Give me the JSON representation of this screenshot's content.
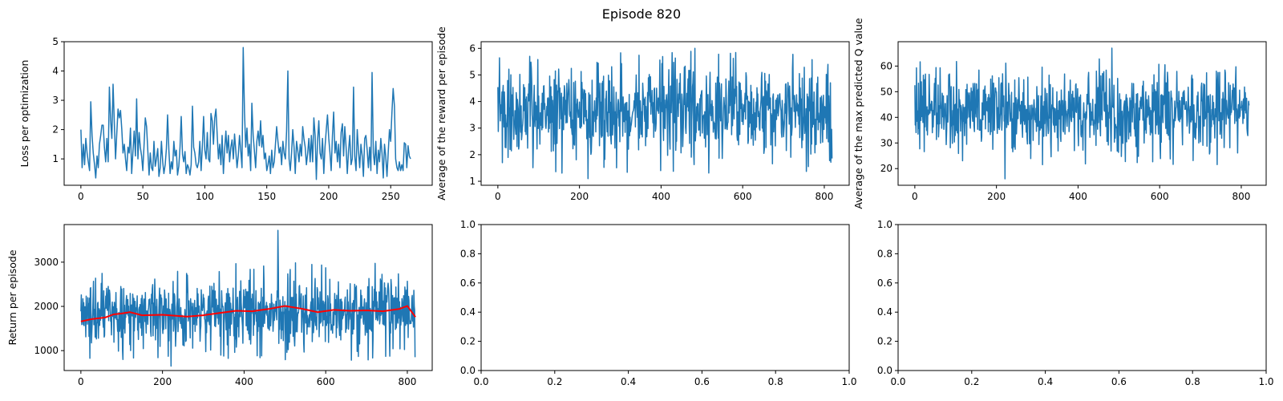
{
  "figure": {
    "title": "Episode 820"
  },
  "colors": {
    "series": "#1f77b4",
    "moving_average": "#ff0000",
    "axes": "#000000"
  },
  "chart_data": [
    {
      "type": "line",
      "ylabel": "Loss per optimization",
      "xlim": [
        -13.5,
        283.5
      ],
      "ylim": [
        0.1,
        5.0
      ],
      "xticks": [
        0,
        50,
        100,
        150,
        200,
        250
      ],
      "yticks": [
        1,
        2,
        3,
        4,
        5
      ],
      "series": [
        {
          "x_start": 0,
          "values": [
            2.0,
            0.7,
            1.5,
            0.8,
            1.7,
            1.2,
            0.9,
            0.6,
            2.95,
            1.8,
            1.2,
            0.8,
            0.35,
            1.1,
            0.7,
            1.5,
            1.8,
            2.15,
            2.15,
            1.4,
            0.9,
            1.7,
            0.9,
            3.45,
            2.3,
            1.7,
            3.55,
            2.2,
            1.0,
            1.9,
            2.7,
            2.4,
            2.65,
            2.0,
            1.2,
            1.5,
            1.0,
            0.6,
            1.4,
            1.2,
            2.05,
            0.5,
            1.25,
            1.95,
            1.1,
            3.05,
            1.0,
            1.9,
            1.4,
            1.1,
            0.6,
            1.5,
            2.4,
            2.1,
            1.3,
            0.45,
            1.2,
            0.7,
            0.6,
            1.6,
            0.75,
            1.0,
            1.35,
            0.4,
            0.7,
            1.6,
            0.9,
            0.5,
            0.8,
            1.35,
            2.5,
            1.3,
            0.5,
            0.9,
            0.65,
            1.6,
            1.1,
            1.3,
            0.45,
            0.75,
            1.4,
            2.45,
            1.15,
            0.9,
            1.25,
            0.5,
            0.8,
            0.7,
            0.45,
            0.8,
            2.8,
            1.4,
            1.2,
            0.8,
            0.7,
            0.9,
            1.6,
            0.6,
            1.4,
            2.45,
            1.3,
            1.0,
            1.9,
            1.0,
            0.9,
            2.55,
            2.3,
            1.5,
            2.4,
            2.7,
            1.8,
            1.0,
            1.5,
            0.8,
            1.8,
            0.5,
            1.3,
            1.95,
            1.2,
            1.8,
            0.9,
            1.4,
            1.65,
            1.0,
            1.85,
            1.3,
            0.7,
            1.1,
            1.8,
            1.3,
            0.7,
            4.8,
            2.6,
            1.4,
            2.05,
            1.1,
            1.5,
            0.6,
            2.9,
            1.8,
            1.3,
            0.7,
            1.6,
            1.95,
            1.45,
            2.3,
            1.4,
            1.8,
            1.0,
            1.2,
            0.6,
            0.8,
            1.1,
            0.5,
            1.3,
            0.7,
            0.9,
            1.5,
            2.1,
            1.6,
            1.2,
            1.4,
            0.8,
            1.6,
            1.2,
            1.0,
            1.95,
            4.0,
            1.0,
            0.6,
            1.2,
            2.0,
            1.4,
            0.5,
            1.6,
            1.3,
            0.9,
            1.5,
            1.1,
            2.1,
            1.7,
            1.4,
            0.8,
            1.2,
            1.7,
            0.9,
            1.8,
            0.9,
            2.4,
            1.8,
            0.3,
            1.6,
            2.3,
            1.2,
            1.0,
            1.7,
            0.5,
            1.4,
            2.0,
            2.5,
            1.7,
            1.2,
            0.6,
            1.8,
            2.6,
            1.2,
            1.6,
            0.9,
            1.5,
            0.7,
            1.9,
            2.2,
            1.1,
            2.1,
            1.4,
            0.5,
            1.3,
            1.8,
            0.8,
            1.0,
            3.45,
            1.1,
            0.6,
            2.0,
            1.3,
            0.7,
            1.5,
            1.1,
            0.4,
            1.7,
            1.8,
            1.3,
            0.7,
            1.4,
            0.6,
            3.95,
            1.2,
            0.8,
            1.6,
            0.5,
            1.3,
            0.9,
            1.7,
            1.2,
            0.35,
            1.5,
            1.1,
            0.4,
            1.2,
            2.0,
            1.6,
            2.6,
            3.4,
            2.8,
            1.0,
            0.7,
            0.6,
            0.9,
            0.6,
            0.8,
            0.6,
            1.55,
            1.5,
            0.7,
            1.45,
            1.1,
            1.0
          ]
        }
      ]
    },
    {
      "type": "line",
      "ylabel": "Average of the reward per episode",
      "xlim": [
        -41,
        861
      ],
      "ylim": [
        0.85,
        6.25
      ],
      "xticks": [
        0,
        200,
        400,
        600,
        800
      ],
      "yticks": [
        1,
        2,
        3,
        4,
        5,
        6
      ],
      "series": [
        {
          "x_start": 0,
          "count": 820,
          "seed": 41,
          "min": 1.1,
          "max": 6.0,
          "mean": 3.6,
          "amplitude": 1.05
        }
      ]
    },
    {
      "type": "line",
      "ylabel": "Average of the max predicted Q value",
      "xlim": [
        -41,
        861
      ],
      "ylim": [
        13.5,
        69.5
      ],
      "xticks": [
        0,
        200,
        400,
        600,
        800
      ],
      "yticks": [
        20,
        30,
        40,
        50,
        60
      ],
      "series": [
        {
          "x_start": 0,
          "count": 820,
          "seed": 977,
          "min": 16,
          "max": 67,
          "mean": 42,
          "amplitude": 9.5
        }
      ]
    },
    {
      "type": "line",
      "ylabel": "Return per episode",
      "xlim": [
        -41,
        861
      ],
      "ylim": [
        550,
        3850
      ],
      "xticks": [
        0,
        200,
        400,
        600,
        800
      ],
      "yticks": [
        1000,
        2000,
        3000
      ],
      "series": [
        {
          "x_start": 0,
          "count": 820,
          "seed": 2024,
          "min": 650,
          "max": 3720,
          "mean": 1850,
          "amplitude": 520
        },
        {
          "x": [
            0,
            25,
            60,
            80,
            100,
            120,
            150,
            200,
            260,
            300,
            340,
            380,
            420,
            460,
            500,
            540,
            580,
            620,
            660,
            700,
            740,
            780,
            800,
            820
          ],
          "y": [
            1660,
            1710,
            1750,
            1820,
            1840,
            1870,
            1800,
            1810,
            1770,
            1800,
            1850,
            1900,
            1890,
            1940,
            2010,
            1950,
            1870,
            1920,
            1900,
            1910,
            1890,
            1940,
            2010,
            1760
          ]
        }
      ]
    },
    {
      "type": "line",
      "ylabel": "",
      "xlim": [
        0.0,
        1.0
      ],
      "ylim": [
        0.0,
        1.0
      ],
      "xticks": [
        "0.0",
        "0.2",
        "0.4",
        "0.6",
        "0.8",
        "1.0"
      ],
      "yticks": [
        "0.0",
        "0.2",
        "0.4",
        "0.6",
        "0.8",
        "1.0"
      ],
      "series": []
    },
    {
      "type": "line",
      "ylabel": "",
      "xlim": [
        0.0,
        1.0
      ],
      "ylim": [
        0.0,
        1.0
      ],
      "xticks": [
        "0.0",
        "0.2",
        "0.4",
        "0.6",
        "0.8",
        "1.0"
      ],
      "yticks": [
        "0.0",
        "0.2",
        "0.4",
        "0.6",
        "0.8",
        "1.0"
      ],
      "series": []
    }
  ]
}
